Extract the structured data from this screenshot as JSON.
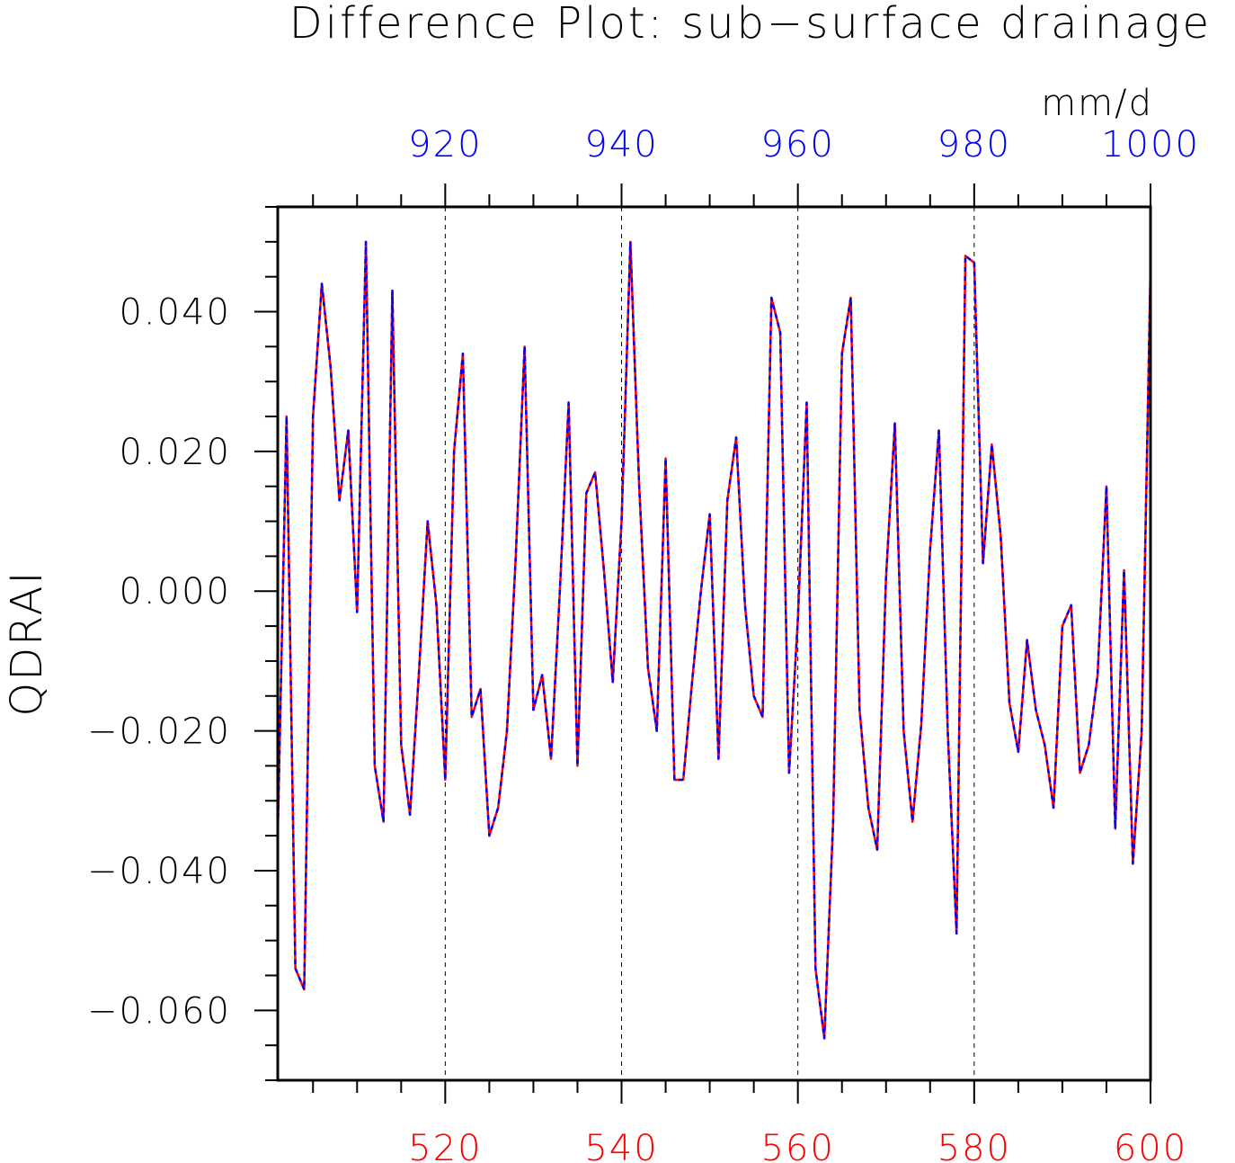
{
  "chart_data": {
    "type": "line",
    "title": "Difference Plot: sub−surface drainage",
    "units": "mm/d",
    "ylabel": "QDRAI",
    "ylim": [
      -0.07,
      0.055
    ],
    "y_ticks": [
      "0.040",
      "0.020",
      "0.000",
      "−0.020",
      "−0.040",
      "−0.060"
    ],
    "y_tick_values": [
      0.04,
      0.02,
      0.0,
      -0.02,
      -0.04,
      -0.06
    ],
    "x_bottom": {
      "lim": [
        501,
        600
      ],
      "ticks": [
        520,
        540,
        560,
        580,
        600
      ],
      "color": "#ff0000"
    },
    "x_top": {
      "lim": [
        901,
        1000
      ],
      "ticks": [
        920,
        940,
        960,
        980,
        1000
      ],
      "color": "#0000ff"
    },
    "grid": "vertical-dashed",
    "series": [
      {
        "color": "#ff0000",
        "style": "solid",
        "axis": "bottom"
      },
      {
        "color": "#0000ff",
        "style": "dashed",
        "axis": "top"
      }
    ],
    "x_start": 501,
    "values": [
      -0.035,
      0.025,
      -0.054,
      -0.057,
      0.025,
      0.044,
      0.032,
      0.013,
      0.023,
      -0.003,
      0.05,
      -0.025,
      -0.033,
      0.043,
      -0.022,
      -0.032,
      -0.012,
      0.01,
      -0.002,
      -0.027,
      0.02,
      0.034,
      -0.018,
      -0.014,
      -0.035,
      -0.031,
      -0.02,
      0.005,
      0.035,
      -0.017,
      -0.012,
      -0.024,
      0.0,
      0.027,
      -0.025,
      0.014,
      0.017,
      0.003,
      -0.013,
      0.01,
      0.05,
      0.015,
      -0.011,
      -0.02,
      0.019,
      -0.027,
      -0.027,
      -0.013,
      0.0,
      0.011,
      -0.024,
      0.013,
      0.022,
      -0.002,
      -0.015,
      -0.018,
      0.042,
      0.037,
      -0.026,
      -0.004,
      0.027,
      -0.054,
      -0.064,
      -0.033,
      0.034,
      0.042,
      -0.017,
      -0.031,
      -0.037,
      0.002,
      0.024,
      -0.02,
      -0.033,
      -0.019,
      0.006,
      0.023,
      -0.02,
      -0.049,
      0.048,
      0.047,
      0.004,
      0.021,
      0.008,
      -0.016,
      -0.023,
      -0.007,
      -0.017,
      -0.022,
      -0.031,
      -0.005,
      -0.002,
      -0.026,
      -0.022,
      -0.012,
      0.015,
      -0.034,
      0.003,
      -0.039,
      -0.02,
      0.046
    ]
  }
}
